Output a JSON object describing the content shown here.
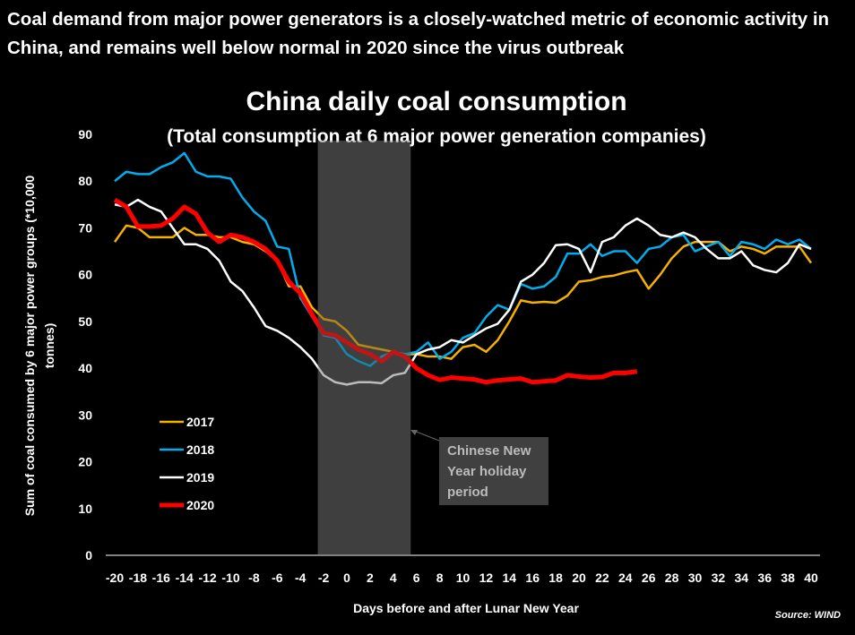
{
  "headline": "Coal demand from major power generators is a closely-watched metric of economic activity in China, and remains well below normal in 2020 since the virus outbreak",
  "source": "Source: WIND",
  "chart_data": {
    "type": "line",
    "title": "China daily coal consumption",
    "subtitle": "(Total consumption at 6 major power generation companies)",
    "xlabel": "Days before and after Lunar New Year",
    "ylabel": "Sum of coal consumed by 6 major power groups (*10,000 tonnes)",
    "xlim": [
      -20,
      40
    ],
    "ylim": [
      0,
      90
    ],
    "x_ticks": [
      -20,
      -18,
      -16,
      -14,
      -12,
      -10,
      -8,
      -6,
      -4,
      -2,
      0,
      2,
      4,
      6,
      8,
      10,
      12,
      14,
      16,
      18,
      20,
      22,
      24,
      26,
      28,
      30,
      32,
      34,
      36,
      38,
      40
    ],
    "y_ticks": [
      0,
      10,
      20,
      30,
      40,
      50,
      60,
      70,
      80,
      90
    ],
    "grid": false,
    "legend_position": "left",
    "shaded_region": {
      "x": [
        -2.5,
        5.5
      ],
      "label": "Chinese New Year holiday period",
      "color": "#404040"
    },
    "x_start": -20,
    "series": [
      {
        "name": "2017",
        "color": "#f5b000",
        "width": 2.5,
        "values": [
          67,
          70.5,
          70,
          68,
          68,
          68,
          70,
          68.5,
          68.5,
          68,
          68,
          67,
          66.5,
          65,
          63,
          57.5,
          57.5,
          53,
          50.5,
          50,
          48,
          45,
          44.5,
          44,
          43.5,
          43,
          43,
          42.5,
          42.5,
          42,
          44.5,
          45,
          43.5,
          46,
          50,
          54.5,
          54,
          54.2,
          54,
          55.5,
          58.5,
          58.8,
          59.5,
          59.8,
          60.5,
          61,
          57,
          60,
          63.5,
          66,
          67,
          67,
          67,
          65,
          66,
          65.5,
          64.5,
          66,
          66,
          66,
          62.5
        ]
      },
      {
        "name": "2018",
        "color": "#00aeef",
        "width": 2.5,
        "values": [
          80,
          82,
          81.5,
          81.5,
          83,
          84,
          86,
          82,
          81,
          81,
          80.5,
          76.5,
          73.5,
          71.5,
          66,
          65.5,
          55,
          51,
          47,
          46.5,
          43,
          41.5,
          40.5,
          42.5,
          43.5,
          43,
          43.5,
          45.5,
          42,
          43.5,
          46.5,
          47.5,
          51,
          53.5,
          52.5,
          58,
          57,
          57.5,
          59.5,
          64.5,
          64.5,
          66.5,
          64,
          65,
          65,
          62.5,
          65.5,
          66,
          68,
          68.5,
          65,
          66,
          67,
          64,
          67,
          66.5,
          65.5,
          67.5,
          66.5,
          67.5,
          65.5
        ]
      },
      {
        "name": "2019",
        "color": "#ffffff",
        "width": 2.5,
        "values": [
          75,
          74.5,
          76,
          74.5,
          73.5,
          70,
          66.5,
          66.5,
          65.5,
          63,
          58.5,
          56.5,
          53,
          49,
          48,
          46.5,
          44.5,
          42,
          38.5,
          37,
          36.5,
          37,
          37,
          36.8,
          38.5,
          39,
          43,
          44,
          44.5,
          46,
          45.5,
          47,
          48.5,
          49.5,
          52.5,
          58.5,
          60,
          62.5,
          66.3,
          66.5,
          65.5,
          60.5,
          67,
          68,
          70.5,
          72,
          70.5,
          68.5,
          68,
          69,
          68,
          65.5,
          63.5,
          63.5,
          65,
          62,
          61,
          60.5,
          62.5,
          66.5,
          65.5
        ]
      },
      {
        "name": "2020",
        "color": "#ff0000",
        "width": 5,
        "values": [
          76,
          74.5,
          70.3,
          70.3,
          70.5,
          72,
          74.5,
          73,
          69,
          67,
          68.5,
          68,
          67,
          65.5,
          63,
          58.5,
          56,
          51.5,
          47.5,
          47,
          45.5,
          44,
          43,
          41.5,
          43.5,
          42.5,
          40,
          38.5,
          37.5,
          38,
          37.8,
          37.6,
          37,
          37.4,
          37.6,
          37.8,
          37,
          37.2,
          37.4,
          38.5,
          38.2,
          38,
          38.1,
          39,
          39,
          39.3
        ]
      }
    ]
  }
}
